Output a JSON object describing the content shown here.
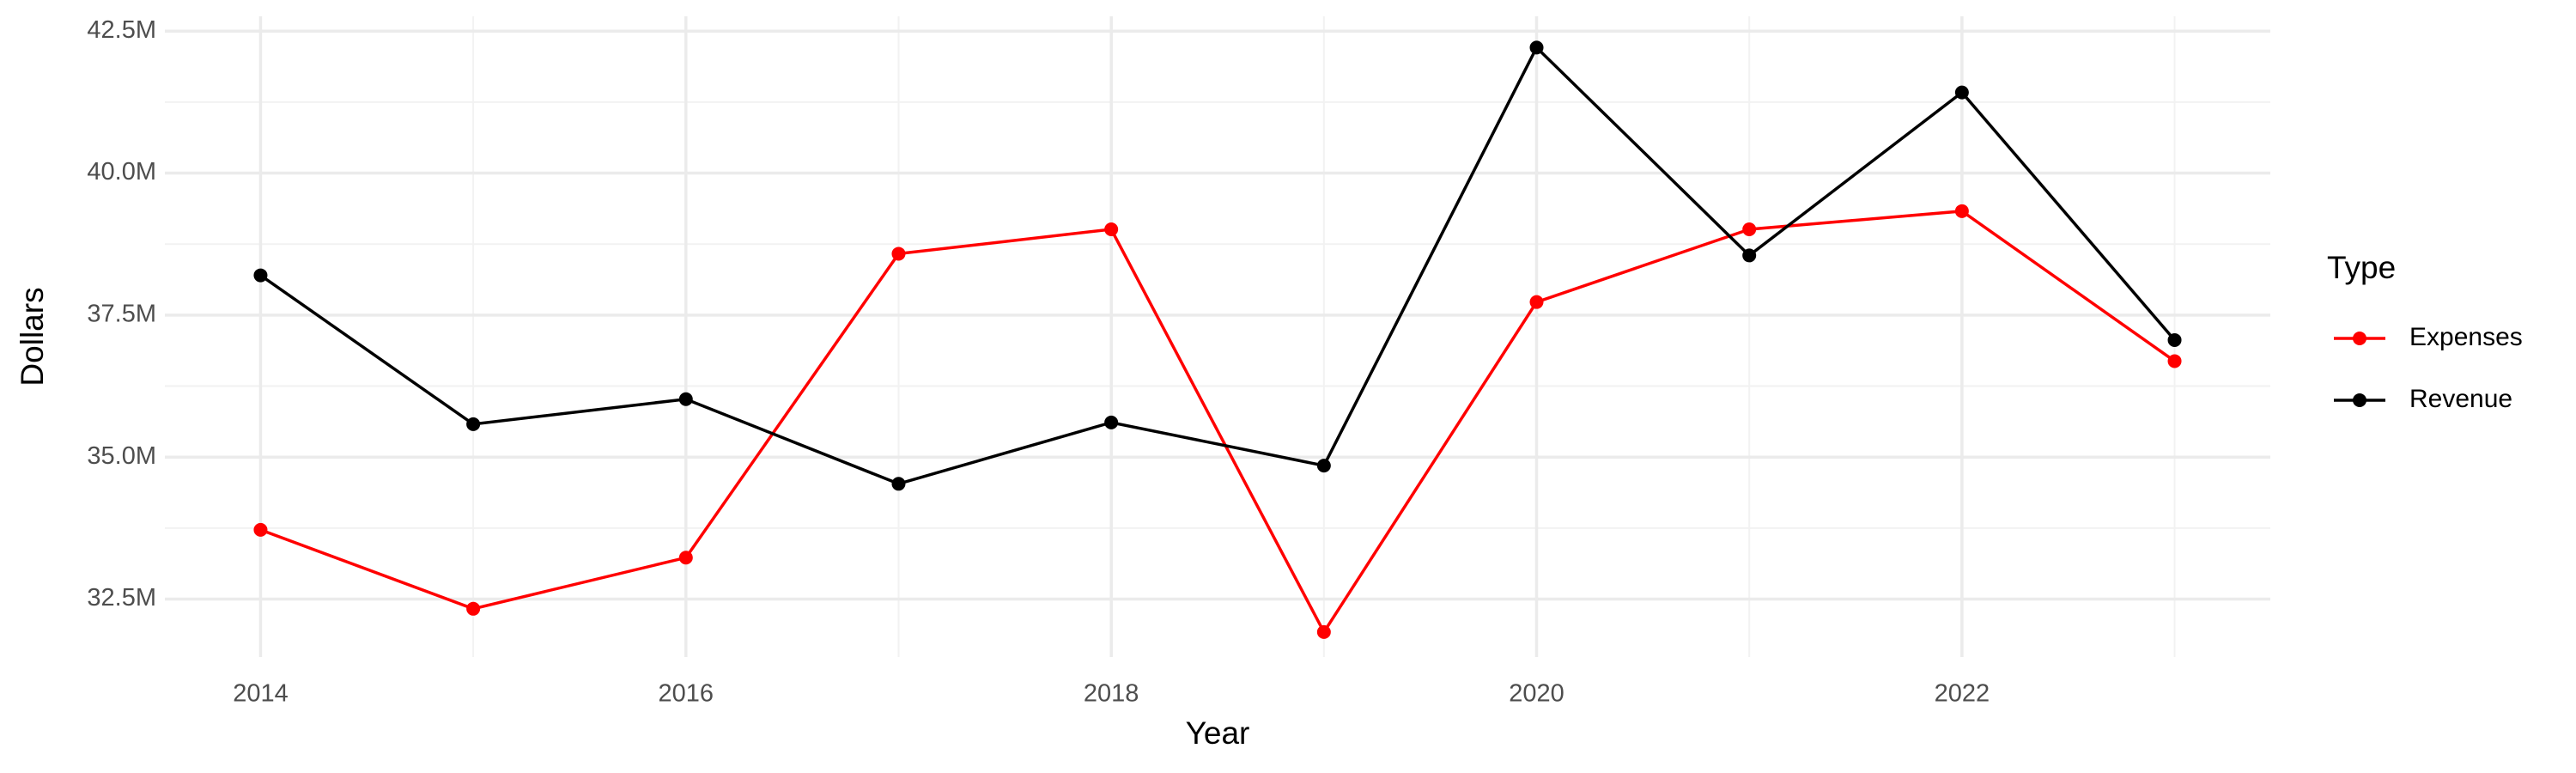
{
  "chart_data": {
    "type": "line",
    "x_label": "Year",
    "y_label": "Dollars",
    "legend_title": "Type",
    "legend_position": "right",
    "grid": true,
    "x": [
      2014,
      2015,
      2016,
      2017,
      2018,
      2019,
      2020,
      2021,
      2022,
      2023
    ],
    "series": [
      {
        "name": "Expenses",
        "color": "#ff0000",
        "values": [
          33720000,
          32330000,
          33230000,
          38580000,
          39010000,
          31920000,
          37730000,
          39010000,
          39330000,
          36690000
        ]
      },
      {
        "name": "Revenue",
        "color": "#000000",
        "values": [
          38200000,
          35580000,
          36020000,
          34530000,
          35610000,
          34850000,
          42210000,
          38550000,
          41420000,
          37060000
        ]
      }
    ],
    "xlim": [
      2013.55,
      2023.45
    ],
    "xticks": [
      2014,
      2016,
      2018,
      2020,
      2022
    ],
    "ylim": [
      31480000,
      42760000
    ],
    "yticks": [
      {
        "value": 32500000,
        "label": "32.5M"
      },
      {
        "value": 35000000,
        "label": "35.0M"
      },
      {
        "value": 37500000,
        "label": "37.5M"
      },
      {
        "value": 40000000,
        "label": "40.0M"
      },
      {
        "value": 42500000,
        "label": "42.5M"
      }
    ]
  }
}
